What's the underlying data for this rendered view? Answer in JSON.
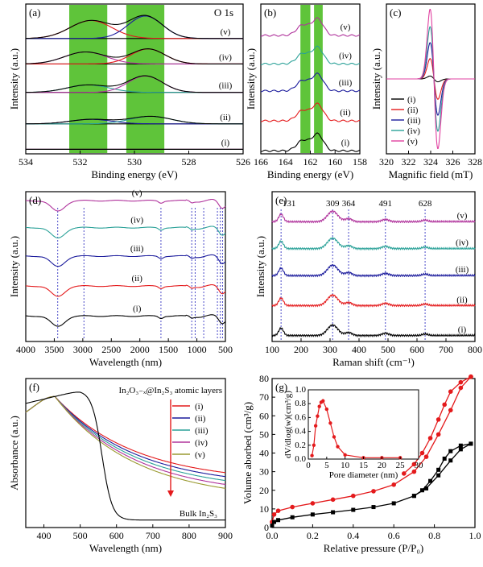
{
  "chart_data": [
    {
      "id": "a",
      "type": "line",
      "panel_label": "(a)",
      "annotation": "O 1s",
      "xlabel": "Binding energy (eV)",
      "ylabel": "Intensity (a.u.)",
      "xlim": [
        534,
        526
      ],
      "x_reversed": true,
      "xticks": [
        "534",
        "532",
        "530",
        "528",
        "526"
      ],
      "highlight_bands": [
        [
          532.4,
          531.0
        ],
        [
          530.3,
          528.9
        ]
      ],
      "highlight_color": "#5fc43a",
      "series": [
        {
          "name": "(i)",
          "offset": 0.03,
          "peaks": [
            {
              "c": 531.6,
              "w": 1.1,
              "h": 0.0
            },
            {
              "c": 529.6,
              "w": 1.0,
              "h": 0.0
            }
          ]
        },
        {
          "name": "(ii)",
          "offset": 0.2,
          "peaks": [
            {
              "c": 531.6,
              "w": 1.1,
              "h": 0.03
            },
            {
              "c": 529.4,
              "w": 1.1,
              "h": 0.05
            }
          ]
        },
        {
          "name": "(iii)",
          "offset": 0.41,
          "peaks": [
            {
              "c": 531.7,
              "w": 1.1,
              "h": 0.05
            },
            {
              "c": 529.6,
              "w": 0.9,
              "h": 0.11
            }
          ]
        },
        {
          "name": "(iv)",
          "offset": 0.6,
          "peaks": [
            {
              "c": 531.8,
              "w": 1.1,
              "h": 0.08
            },
            {
              "c": 529.5,
              "w": 0.9,
              "h": 0.1
            }
          ]
        },
        {
          "name": "(v)",
          "offset": 0.77,
          "peaks": [
            {
              "c": 531.6,
              "w": 1.1,
              "h": 0.12
            },
            {
              "c": 529.6,
              "w": 0.9,
              "h": 0.15
            }
          ]
        }
      ]
    },
    {
      "id": "b",
      "type": "line",
      "panel_label": "(b)",
      "xlabel": "Binding energy (eV)",
      "ylabel": "Intensity (a.u.)",
      "xlim": [
        166,
        158
      ],
      "x_reversed": true,
      "xticks": [
        "166",
        "164",
        "162",
        "160",
        "158"
      ],
      "highlight_bands": [
        [
          162.8,
          162.0
        ],
        [
          161.7,
          161.0
        ]
      ],
      "highlight_color": "#5fc43a",
      "series": [
        {
          "name": "(i)",
          "offset": 0.02,
          "color": "#000000"
        },
        {
          "name": "(ii)",
          "offset": 0.22,
          "color": "#e41a1c"
        },
        {
          "name": "(iii)",
          "offset": 0.42,
          "color": "#1b1b9c"
        },
        {
          "name": "(iv)",
          "offset": 0.6,
          "color": "#2aa198"
        },
        {
          "name": "(v)",
          "offset": 0.79,
          "color": "#b0339c"
        }
      ]
    },
    {
      "id": "c",
      "type": "line",
      "panel_label": "(c)",
      "xlabel": "Magnific field (mT)",
      "ylabel": "Intensity (a.u.)",
      "xlim": [
        320,
        328
      ],
      "xticks": [
        "320",
        "322",
        "324",
        "326",
        "328"
      ],
      "series": [
        {
          "name": "(i)",
          "amp": 0.02,
          "color": "#000000"
        },
        {
          "name": "(ii)",
          "amp": 0.14,
          "color": "#e41a1c"
        },
        {
          "name": "(iii)",
          "amp": 0.25,
          "color": "#1b1b9c"
        },
        {
          "name": "(iv)",
          "amp": 0.36,
          "color": "#2aa198"
        },
        {
          "name": "(v)",
          "amp": 0.48,
          "color": "#e040a0"
        }
      ]
    },
    {
      "id": "d",
      "type": "line",
      "panel_label": "(d)",
      "xlabel": "Wavelength (nm)",
      "ylabel": "Intensity (a.u.)",
      "xlim": [
        4000,
        500
      ],
      "x_reversed": true,
      "xticks": [
        "4000",
        "3500",
        "3000",
        "2500",
        "2000",
        "1500",
        "1000",
        "500"
      ],
      "marker_lines": [
        3440,
        2980,
        1630,
        1090,
        1030,
        880,
        640,
        590,
        550
      ],
      "series": [
        {
          "name": "(i)",
          "offset": 0.05,
          "color": "#000000"
        },
        {
          "name": "(ii)",
          "offset": 0.25,
          "color": "#e41a1c"
        },
        {
          "name": "(iii)",
          "offset": 0.45,
          "color": "#1b1b9c"
        },
        {
          "name": "(iv)",
          "offset": 0.64,
          "color": "#2aa198"
        },
        {
          "name": "(v)",
          "offset": 0.82,
          "color": "#b0339c"
        }
      ]
    },
    {
      "id": "e",
      "type": "line",
      "panel_label": "(e)",
      "xlabel": "Raman shift (cm⁻¹)",
      "ylabel": "Intensity (a.u.)",
      "xlim": [
        100,
        800
      ],
      "xticks": [
        "100",
        "200",
        "300",
        "400",
        "500",
        "600",
        "700",
        "800"
      ],
      "peak_labels": [
        {
          "x": 131,
          "label": "131"
        },
        {
          "x": 309,
          "label": "309"
        },
        {
          "x": 364,
          "label": "364"
        },
        {
          "x": 491,
          "label": "491"
        },
        {
          "x": 628,
          "label": "628"
        }
      ],
      "series": [
        {
          "name": "(i)",
          "offset": 0.04,
          "color": "#000000"
        },
        {
          "name": "(ii)",
          "offset": 0.24,
          "color": "#e41a1c"
        },
        {
          "name": "(iii)",
          "offset": 0.44,
          "color": "#1b1b9c"
        },
        {
          "name": "(iv)",
          "offset": 0.62,
          "color": "#2aa198"
        },
        {
          "name": "(v)",
          "offset": 0.8,
          "color": "#b0339c"
        }
      ]
    },
    {
      "id": "f",
      "type": "line",
      "panel_label": "(f)",
      "xlabel": "Wavelength (nm)",
      "ylabel": "Absorbance (a.u.)",
      "xlim": [
        350,
        900
      ],
      "xticks": [
        "400",
        "500",
        "600",
        "700",
        "800",
        "900"
      ],
      "legend_title": "In₂O₃₋ₓ@In₂S₃ atomic layers",
      "bulk_label": "Bulk In₂S₃",
      "series": [
        {
          "name": "(i)",
          "color": "#e41a1c",
          "end": 0.3
        },
        {
          "name": "(ii)",
          "color": "#1b1b9c",
          "end": 0.27
        },
        {
          "name": "(iii)",
          "color": "#2aa198",
          "end": 0.24
        },
        {
          "name": "(iv)",
          "color": "#b0339c",
          "end": 0.21
        },
        {
          "name": "(v)",
          "color": "#9a9a30",
          "end": 0.18
        }
      ]
    },
    {
      "id": "g",
      "type": "line",
      "panel_label": "(g)",
      "xlabel": "Relative pressure (P/P₀)",
      "ylabel": "Volume aborbed (cm³/g)",
      "xlim": [
        0,
        1.0
      ],
      "ylim": [
        0,
        80
      ],
      "xticks": [
        "0.0",
        "0.2",
        "0.4",
        "0.6",
        "0.8",
        "1.0"
      ],
      "yticks": [
        "0",
        "10",
        "20",
        "30",
        "40",
        "50",
        "60",
        "70",
        "80"
      ],
      "series": [
        {
          "color": "#e41a1c",
          "adsorption": [
            [
              0.0,
              3
            ],
            [
              0.01,
              7
            ],
            [
              0.03,
              9
            ],
            [
              0.1,
              11
            ],
            [
              0.2,
              13
            ],
            [
              0.3,
              15
            ],
            [
              0.4,
              17
            ],
            [
              0.5,
              19.5
            ],
            [
              0.6,
              23
            ],
            [
              0.7,
              30
            ],
            [
              0.76,
              38
            ],
            [
              0.82,
              50
            ],
            [
              0.88,
              63
            ],
            [
              0.93,
              75
            ],
            [
              0.98,
              81
            ]
          ],
          "desorption": [
            [
              0.98,
              81
            ],
            [
              0.93,
              78
            ],
            [
              0.88,
              73
            ],
            [
              0.85,
              66
            ],
            [
              0.82,
              58
            ],
            [
              0.78,
              48
            ],
            [
              0.74,
              40
            ],
            [
              0.7,
              34
            ],
            [
              0.65,
              29
            ]
          ]
        },
        {
          "color": "#000000",
          "adsorption": [
            [
              0.0,
              1
            ],
            [
              0.01,
              3
            ],
            [
              0.03,
              4
            ],
            [
              0.1,
              5.5
            ],
            [
              0.2,
              7
            ],
            [
              0.3,
              8.2
            ],
            [
              0.4,
              9.5
            ],
            [
              0.5,
              11
            ],
            [
              0.6,
              13
            ],
            [
              0.7,
              17
            ],
            [
              0.76,
              21
            ],
            [
              0.82,
              28
            ],
            [
              0.88,
              36
            ],
            [
              0.93,
              42
            ],
            [
              0.98,
              45
            ]
          ],
          "desorption": [
            [
              0.98,
              45
            ],
            [
              0.93,
              44
            ],
            [
              0.88,
              41
            ],
            [
              0.85,
              37
            ],
            [
              0.82,
              31
            ],
            [
              0.78,
              25
            ],
            [
              0.74,
              20
            ],
            [
              0.7,
              17
            ]
          ]
        }
      ],
      "inset": {
        "xlabel": "Pore diameter (nm)",
        "ylabel": "dV/dlog(w)(cm³/g)",
        "xlim": [
          0,
          30
        ],
        "ylim": [
          0,
          1.0
        ],
        "xticks": [
          "0",
          "5",
          "10",
          "15",
          "20",
          "25",
          "30"
        ],
        "yticks": [
          "0.0",
          "0.2",
          "0.4",
          "0.6",
          "0.8",
          "1.0"
        ],
        "color": "#e41a1c",
        "points": [
          [
            1.0,
            0.05
          ],
          [
            1.5,
            0.2
          ],
          [
            2.0,
            0.48
          ],
          [
            2.5,
            0.62
          ],
          [
            3.0,
            0.76
          ],
          [
            3.5,
            0.82
          ],
          [
            4.0,
            0.84
          ],
          [
            5.0,
            0.72
          ],
          [
            6.0,
            0.52
          ],
          [
            7.0,
            0.32
          ],
          [
            8.0,
            0.18
          ],
          [
            10.0,
            0.06
          ],
          [
            15.0,
            0.02
          ],
          [
            20.0,
            0.02
          ],
          [
            25.0,
            0.02
          ]
        ]
      }
    }
  ]
}
